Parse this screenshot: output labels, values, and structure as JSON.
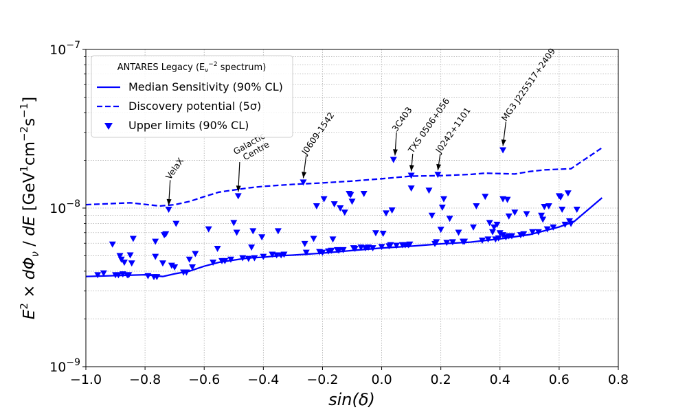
{
  "chart_data": {
    "type": "scatter",
    "title": "",
    "xlabel": "sin(δ)",
    "ylabel": "E² × dΦᵥ / dE [GeV¹cm⁻²s⁻¹]",
    "xlim": [
      -1.0,
      0.8
    ],
    "ylim": [
      1e-09,
      1e-07
    ],
    "yscale": "log",
    "grid": true,
    "x_ticks": [
      -1.0,
      -0.8,
      -0.6,
      -0.4,
      -0.2,
      0.0,
      0.2,
      0.4,
      0.6,
      0.8
    ],
    "x_tick_labels": [
      "−1.0",
      "−0.8",
      "−0.6",
      "−0.4",
      "−0.2",
      "0.0",
      "0.2",
      "0.4",
      "0.6",
      "0.8"
    ],
    "y_ticks": [
      1e-09,
      1e-08,
      1e-07
    ],
    "y_tick_labels": [
      {
        "base": "10",
        "exp": "−9"
      },
      {
        "base": "10",
        "exp": "−8"
      },
      {
        "base": "10",
        "exp": "−7"
      }
    ],
    "color": "#0000ff",
    "legend": {
      "position": "upper left",
      "title": "ANTARES Legacy (Eᵥ⁻² spectrum)",
      "entries": [
        "Median Sensitivity (90% CL)",
        "Discovery potential (5σ)",
        "Upper limits (90% CL)"
      ]
    },
    "series": [
      {
        "name": "Median Sensitivity (90% CL)",
        "type": "line",
        "style": "solid",
        "x": [
          -1.0,
          -0.9,
          -0.8,
          -0.74,
          -0.7,
          -0.65,
          -0.6,
          -0.55,
          -0.5,
          -0.45,
          -0.4,
          -0.35,
          -0.3,
          -0.2,
          -0.1,
          0.0,
          0.1,
          0.2,
          0.3,
          0.4,
          0.5,
          0.6,
          0.65,
          0.745
        ],
        "y": [
          3.7e-09,
          3.75e-09,
          3.8e-09,
          3.7e-09,
          3.85e-09,
          4e-09,
          4.3e-09,
          4.55e-09,
          4.7e-09,
          4.85e-09,
          4.9e-09,
          5e-09,
          5.05e-09,
          5.2e-09,
          5.4e-09,
          5.6e-09,
          5.75e-09,
          5.95e-09,
          6.1e-09,
          6.4e-09,
          6.8e-09,
          7.6e-09,
          8.2e-09,
          1.16e-08
        ]
      },
      {
        "name": "Discovery potential (5σ)",
        "type": "line",
        "style": "dashed",
        "x": [
          -1.0,
          -0.85,
          -0.75,
          -0.7,
          -0.65,
          -0.6,
          -0.55,
          -0.5,
          -0.45,
          -0.4,
          -0.3,
          -0.2,
          -0.1,
          0.0,
          0.1,
          0.2,
          0.3,
          0.35,
          0.45,
          0.5,
          0.55,
          0.64,
          0.745
        ],
        "y": [
          1.05e-08,
          1.08e-08,
          1.03e-08,
          1.05e-08,
          1.1e-08,
          1.18e-08,
          1.26e-08,
          1.3e-08,
          1.34e-08,
          1.37e-08,
          1.41e-08,
          1.44e-08,
          1.48e-08,
          1.53e-08,
          1.59e-08,
          1.6e-08,
          1.63e-08,
          1.66e-08,
          1.64e-08,
          1.7e-08,
          1.74e-08,
          1.77e-08,
          2.4e-08
        ]
      },
      {
        "name": "Upper limits (90% CL)",
        "type": "scatter",
        "marker": "triangle-down",
        "points": [
          [
            -0.96,
            3.75e-09
          ],
          [
            -0.94,
            3.85e-09
          ],
          [
            -0.91,
            5.85e-09
          ],
          [
            -0.9,
            3.75e-09
          ],
          [
            -0.89,
            3.75e-09
          ],
          [
            -0.885,
            4.95e-09
          ],
          [
            -0.88,
            4.7e-09
          ],
          [
            -0.875,
            3.8e-09
          ],
          [
            -0.87,
            4.5e-09
          ],
          [
            -0.86,
            3.75e-09
          ],
          [
            -0.855,
            3.75e-09
          ],
          [
            -0.85,
            5e-09
          ],
          [
            -0.845,
            4.45e-09
          ],
          [
            -0.84,
            6.35e-09
          ],
          [
            -0.79,
            3.7e-09
          ],
          [
            -0.77,
            3.65e-09
          ],
          [
            -0.765,
            4.9e-09
          ],
          [
            -0.765,
            6.1e-09
          ],
          [
            -0.76,
            3.65e-09
          ],
          [
            -0.74,
            4.45e-09
          ],
          [
            -0.735,
            6.7e-09
          ],
          [
            -0.73,
            6.8e-09
          ],
          [
            -0.72,
            9.7e-09
          ],
          [
            -0.71,
            4.3e-09
          ],
          [
            -0.7,
            4.2e-09
          ],
          [
            -0.695,
            7.9e-09
          ],
          [
            -0.67,
            3.9e-09
          ],
          [
            -0.66,
            3.9e-09
          ],
          [
            -0.65,
            4.7e-09
          ],
          [
            -0.64,
            4.2e-09
          ],
          [
            -0.63,
            5.1e-09
          ],
          [
            -0.585,
            7.3e-09
          ],
          [
            -0.57,
            4.5e-09
          ],
          [
            -0.555,
            5.5e-09
          ],
          [
            -0.54,
            4.6e-09
          ],
          [
            -0.53,
            4.6e-09
          ],
          [
            -0.51,
            4.7e-09
          ],
          [
            -0.5,
            8e-09
          ],
          [
            -0.49,
            6.95e-09
          ],
          [
            -0.485,
            1.18e-08
          ],
          [
            -0.47,
            4.8e-09
          ],
          [
            -0.45,
            4.75e-09
          ],
          [
            -0.44,
            5.6e-09
          ],
          [
            -0.435,
            7.1e-09
          ],
          [
            -0.43,
            4.8e-09
          ],
          [
            -0.405,
            6.5e-09
          ],
          [
            -0.4,
            4.9e-09
          ],
          [
            -0.37,
            5.05e-09
          ],
          [
            -0.355,
            5e-09
          ],
          [
            -0.35,
            7.1e-09
          ],
          [
            -0.34,
            5e-09
          ],
          [
            -0.33,
            5.05e-09
          ],
          [
            -0.265,
            1.44e-08
          ],
          [
            -0.26,
            5.9e-09
          ],
          [
            -0.255,
            5.2e-09
          ],
          [
            -0.23,
            6.35e-09
          ],
          [
            -0.22,
            1.02e-08
          ],
          [
            -0.21,
            5.25e-09
          ],
          [
            -0.2,
            5.2e-09
          ],
          [
            -0.195,
            1.13e-08
          ],
          [
            -0.18,
            5.3e-09
          ],
          [
            -0.17,
            5.35e-09
          ],
          [
            -0.165,
            6.3e-09
          ],
          [
            -0.16,
            1.05e-08
          ],
          [
            -0.15,
            5.4e-09
          ],
          [
            -0.145,
            5.35e-09
          ],
          [
            -0.14,
            9.9e-09
          ],
          [
            -0.13,
            5.4e-09
          ],
          [
            -0.125,
            9.3e-09
          ],
          [
            -0.11,
            1.22e-08
          ],
          [
            -0.105,
            1.2e-08
          ],
          [
            -0.1,
            1.09e-08
          ],
          [
            -0.095,
            5.55e-09
          ],
          [
            -0.09,
            5.5e-09
          ],
          [
            -0.07,
            5.6e-09
          ],
          [
            -0.06,
            1.22e-08
          ],
          [
            -0.055,
            5.55e-09
          ],
          [
            -0.045,
            5.6e-09
          ],
          [
            -0.03,
            5.55e-09
          ],
          [
            -0.02,
            6.9e-09
          ],
          [
            0.0,
            5.65e-09
          ],
          [
            0.005,
            6.85e-09
          ],
          [
            0.015,
            9.2e-09
          ],
          [
            0.025,
            5.7e-09
          ],
          [
            0.03,
            5.8e-09
          ],
          [
            0.035,
            9.6e-09
          ],
          [
            0.04,
            2e-08
          ],
          [
            0.05,
            5.75e-09
          ],
          [
            0.07,
            5.8e-09
          ],
          [
            0.08,
            5.8e-09
          ],
          [
            0.09,
            5.8e-09
          ],
          [
            0.095,
            5.85e-09
          ],
          [
            0.1,
            1.59e-08
          ],
          [
            0.1,
            1.32e-08
          ],
          [
            0.16,
            1.28e-08
          ],
          [
            0.17,
            8.9e-09
          ],
          [
            0.18,
            5.9e-09
          ],
          [
            0.185,
            6.05e-09
          ],
          [
            0.19,
            1.61e-08
          ],
          [
            0.2,
            7.25e-09
          ],
          [
            0.205,
            1e-08
          ],
          [
            0.21,
            1.13e-08
          ],
          [
            0.22,
            6e-09
          ],
          [
            0.23,
            8.5e-09
          ],
          [
            0.24,
            6.05e-09
          ],
          [
            0.26,
            6.95e-09
          ],
          [
            0.275,
            6.1e-09
          ],
          [
            0.28,
            6.1e-09
          ],
          [
            0.31,
            7.5e-09
          ],
          [
            0.32,
            1.02e-08
          ],
          [
            0.34,
            6.2e-09
          ],
          [
            0.35,
            1.17e-08
          ],
          [
            0.36,
            6.3e-09
          ],
          [
            0.365,
            8e-09
          ],
          [
            0.375,
            7e-09
          ],
          [
            0.38,
            7.5e-09
          ],
          [
            0.385,
            6.3e-09
          ],
          [
            0.39,
            7.8e-09
          ],
          [
            0.395,
            6.4e-09
          ],
          [
            0.4,
            6.9e-09
          ],
          [
            0.41,
            2.3e-08
          ],
          [
            0.41,
            1.13e-08
          ],
          [
            0.41,
            6.7e-09
          ],
          [
            0.42,
            6.5e-09
          ],
          [
            0.425,
            1.12e-08
          ],
          [
            0.43,
            6.6e-09
          ],
          [
            0.43,
            8.8e-09
          ],
          [
            0.44,
            6.6e-09
          ],
          [
            0.45,
            9.3e-09
          ],
          [
            0.47,
            6.7e-09
          ],
          [
            0.48,
            6.8e-09
          ],
          [
            0.49,
            9.1e-09
          ],
          [
            0.51,
            7e-09
          ],
          [
            0.53,
            7e-09
          ],
          [
            0.54,
            8.9e-09
          ],
          [
            0.545,
            8.4e-09
          ],
          [
            0.55,
            1.01e-08
          ],
          [
            0.56,
            7.3e-09
          ],
          [
            0.565,
            1.02e-08
          ],
          [
            0.58,
            7.5e-09
          ],
          [
            0.6,
            1.18e-08
          ],
          [
            0.605,
            1.16e-08
          ],
          [
            0.61,
            9.7e-09
          ],
          [
            0.62,
            7.8e-09
          ],
          [
            0.63,
            1.23e-08
          ],
          [
            0.635,
            8.2e-09
          ],
          [
            0.64,
            7.9e-09
          ],
          [
            0.66,
            9.7e-09
          ]
        ]
      }
    ],
    "annotations": [
      {
        "text": "VelaX",
        "x": -0.72,
        "y": 9.7e-09,
        "xytext": [
          -0.715,
          1.5e-08
        ]
      },
      {
        "text": "Galactic\nCentre",
        "x": -0.485,
        "y": 1.18e-08,
        "xytext": [
          -0.48,
          1.95e-08
        ]
      },
      {
        "text": "J0609-1542",
        "x": -0.265,
        "y": 1.44e-08,
        "xytext": [
          -0.255,
          2.15e-08
        ]
      },
      {
        "text": "3C403",
        "x": 0.045,
        "y": 2e-08,
        "xytext": [
          0.05,
          3e-08
        ]
      },
      {
        "text": "TXS 0506+056",
        "x": 0.1,
        "y": 1.59e-08,
        "xytext": [
          0.105,
          2.2e-08
        ]
      },
      {
        "text": "J0242+1101",
        "x": 0.19,
        "y": 1.61e-08,
        "xytext": [
          0.198,
          2.2e-08
        ]
      },
      {
        "text": "MG3 J225517+2409",
        "x": 0.41,
        "y": 2.3e-08,
        "xytext": [
          0.42,
          3.5e-08
        ]
      }
    ]
  }
}
